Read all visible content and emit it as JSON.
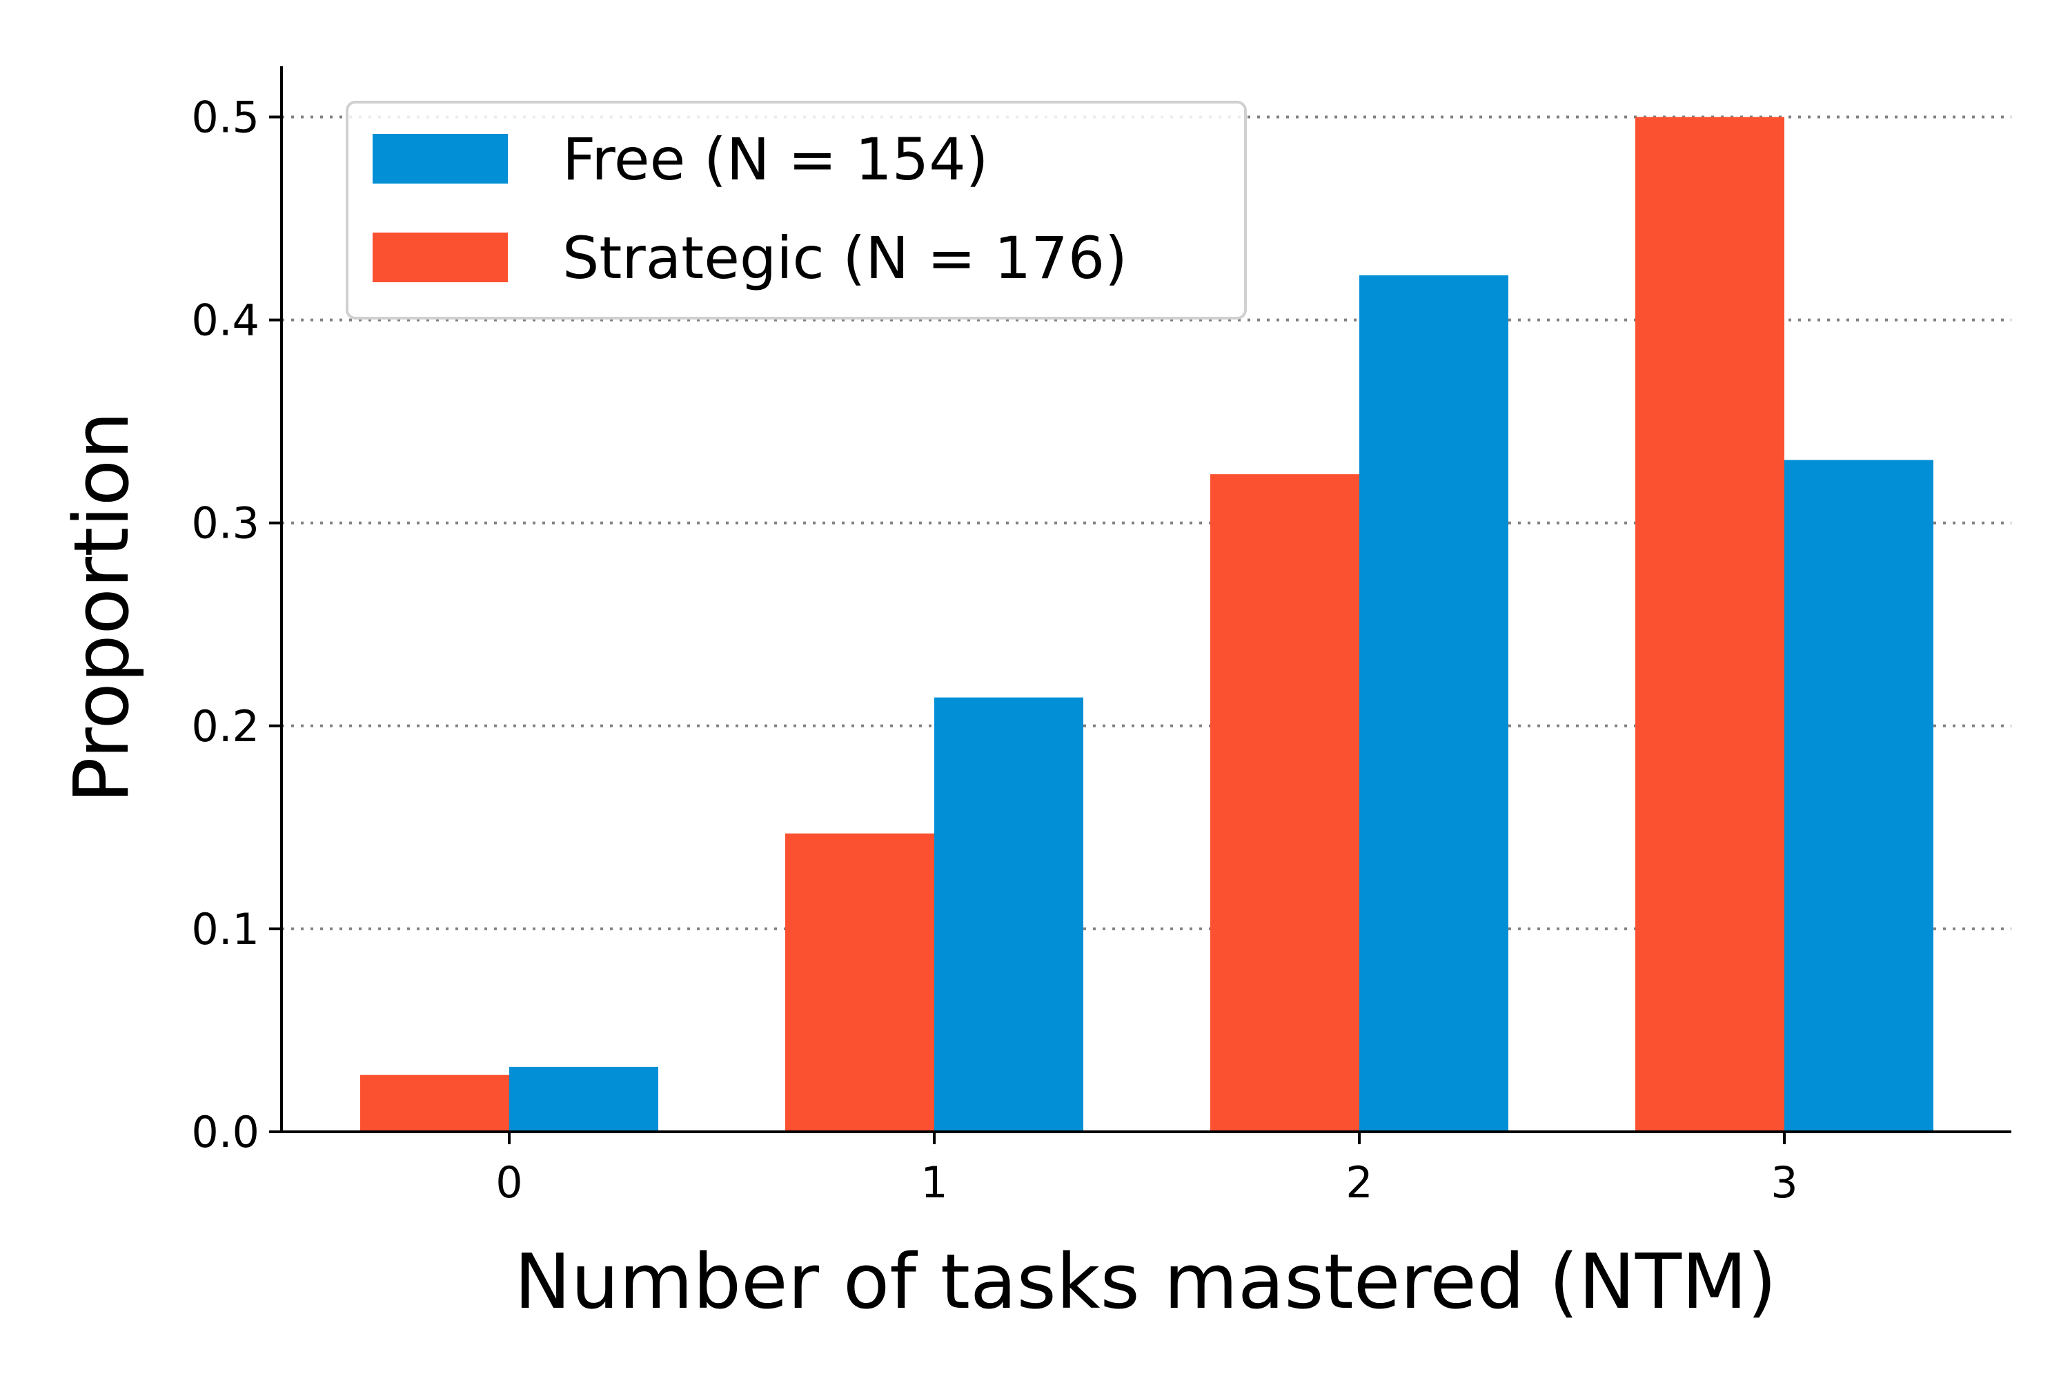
{
  "chart_data": {
    "type": "bar",
    "xlabel": "Number of tasks mastered (NTM)",
    "ylabel": "Proportion",
    "categories": [
      "0",
      "1",
      "2",
      "3"
    ],
    "ylim": [
      0,
      0.525
    ],
    "yticks": [
      "0.0",
      "0.1",
      "0.2",
      "0.3",
      "0.4",
      "0.5"
    ],
    "series": [
      {
        "name": "Strategic (N = 176)",
        "color": "#fc5130",
        "values": [
          0.028,
          0.147,
          0.324,
          0.5
        ]
      },
      {
        "name": "Free (N = 154)",
        "color": "#028fd6",
        "values": [
          0.032,
          0.214,
          0.422,
          0.331
        ]
      }
    ],
    "legend": {
      "placement": "top-left",
      "entries": [
        {
          "label": "Free (N = 154)",
          "color": "#028fd6"
        },
        {
          "label": "Strategic (N = 176)",
          "color": "#fc5130"
        }
      ]
    },
    "grid": "y-dotted"
  }
}
